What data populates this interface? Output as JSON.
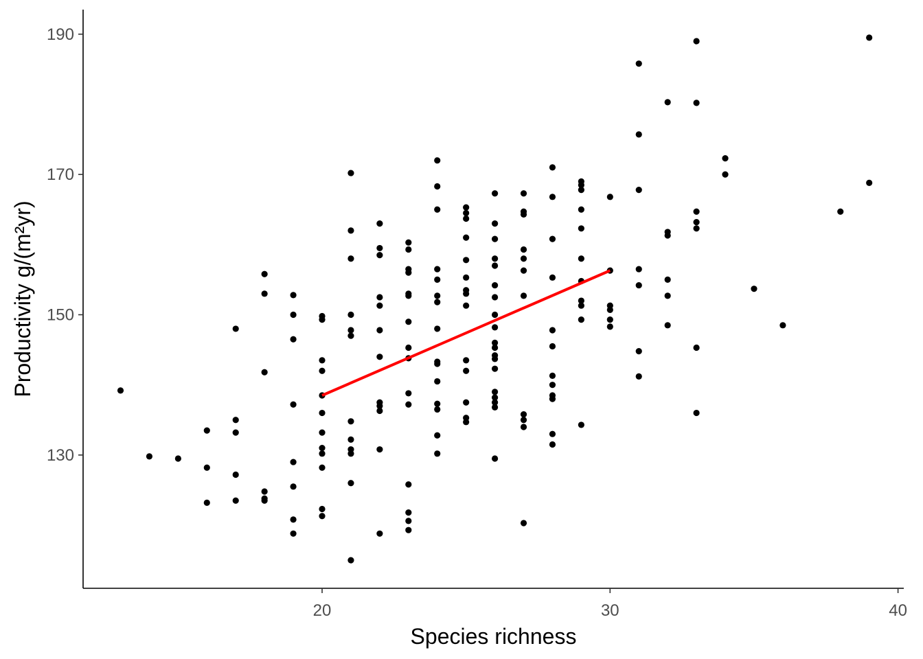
{
  "chart_data": {
    "type": "scatter",
    "xlabel": "Species richness",
    "ylabel": "Productivity g/(m²yr)",
    "xlim": [
      11.7,
      40.2
    ],
    "ylim": [
      111.0,
      193.5
    ],
    "x_ticks": [
      20,
      30,
      40
    ],
    "y_ticks": [
      130,
      150,
      170,
      190
    ],
    "grid": false,
    "colors": {
      "points": "#000000",
      "fit_line": "#ff0000",
      "axis": "#000000",
      "tick_text": "#4d4d4d"
    },
    "fit_line": {
      "x": [
        20,
        30
      ],
      "y": [
        138.5,
        156.3
      ]
    },
    "points": [
      {
        "x": 13,
        "y": 139.2
      },
      {
        "x": 14,
        "y": 129.8
      },
      {
        "x": 15,
        "y": 129.5
      },
      {
        "x": 16,
        "y": 133.5
      },
      {
        "x": 16,
        "y": 128.2
      },
      {
        "x": 16,
        "y": 123.2
      },
      {
        "x": 17,
        "y": 148.0
      },
      {
        "x": 17,
        "y": 135.0
      },
      {
        "x": 17,
        "y": 133.2
      },
      {
        "x": 17,
        "y": 127.2
      },
      {
        "x": 17,
        "y": 123.5
      },
      {
        "x": 18,
        "y": 155.8
      },
      {
        "x": 18,
        "y": 153.0
      },
      {
        "x": 18,
        "y": 141.8
      },
      {
        "x": 18,
        "y": 124.8
      },
      {
        "x": 18,
        "y": 123.8
      },
      {
        "x": 18,
        "y": 123.5
      },
      {
        "x": 19,
        "y": 152.8
      },
      {
        "x": 19,
        "y": 150.0
      },
      {
        "x": 19,
        "y": 146.5
      },
      {
        "x": 19,
        "y": 137.2
      },
      {
        "x": 19,
        "y": 129.0
      },
      {
        "x": 19,
        "y": 125.5
      },
      {
        "x": 19,
        "y": 120.8
      },
      {
        "x": 19,
        "y": 118.8
      },
      {
        "x": 20,
        "y": 149.8
      },
      {
        "x": 20,
        "y": 149.3
      },
      {
        "x": 20,
        "y": 143.5
      },
      {
        "x": 20,
        "y": 142.0
      },
      {
        "x": 20,
        "y": 138.5
      },
      {
        "x": 20,
        "y": 136.0
      },
      {
        "x": 20,
        "y": 133.2
      },
      {
        "x": 20,
        "y": 131.0
      },
      {
        "x": 20,
        "y": 130.2
      },
      {
        "x": 20,
        "y": 128.2
      },
      {
        "x": 20,
        "y": 122.3
      },
      {
        "x": 20,
        "y": 121.3
      },
      {
        "x": 21,
        "y": 170.2
      },
      {
        "x": 21,
        "y": 162.0
      },
      {
        "x": 21,
        "y": 158.0
      },
      {
        "x": 21,
        "y": 150.0
      },
      {
        "x": 21,
        "y": 147.8
      },
      {
        "x": 21,
        "y": 147.0
      },
      {
        "x": 21,
        "y": 134.8
      },
      {
        "x": 21,
        "y": 132.2
      },
      {
        "x": 21,
        "y": 130.8
      },
      {
        "x": 21,
        "y": 130.2
      },
      {
        "x": 21,
        "y": 126.0
      },
      {
        "x": 21,
        "y": 115.0
      },
      {
        "x": 22,
        "y": 163.0
      },
      {
        "x": 22,
        "y": 159.5
      },
      {
        "x": 22,
        "y": 158.5
      },
      {
        "x": 22,
        "y": 152.5
      },
      {
        "x": 22,
        "y": 151.3
      },
      {
        "x": 22,
        "y": 147.8
      },
      {
        "x": 22,
        "y": 144.0
      },
      {
        "x": 22,
        "y": 137.5
      },
      {
        "x": 22,
        "y": 137.0
      },
      {
        "x": 22,
        "y": 136.3
      },
      {
        "x": 22,
        "y": 130.8
      },
      {
        "x": 22,
        "y": 118.8
      },
      {
        "x": 23,
        "y": 160.3
      },
      {
        "x": 23,
        "y": 159.3
      },
      {
        "x": 23,
        "y": 156.5
      },
      {
        "x": 23,
        "y": 156.0
      },
      {
        "x": 23,
        "y": 153.0
      },
      {
        "x": 23,
        "y": 152.7
      },
      {
        "x": 23,
        "y": 149.0
      },
      {
        "x": 23,
        "y": 145.3
      },
      {
        "x": 23,
        "y": 143.8
      },
      {
        "x": 23,
        "y": 138.8
      },
      {
        "x": 23,
        "y": 137.2
      },
      {
        "x": 23,
        "y": 125.8
      },
      {
        "x": 23,
        "y": 121.8
      },
      {
        "x": 23,
        "y": 120.6
      },
      {
        "x": 23,
        "y": 119.3
      },
      {
        "x": 24,
        "y": 172.0
      },
      {
        "x": 24,
        "y": 168.3
      },
      {
        "x": 24,
        "y": 165.0
      },
      {
        "x": 24,
        "y": 156.5
      },
      {
        "x": 24,
        "y": 155.0
      },
      {
        "x": 24,
        "y": 152.7
      },
      {
        "x": 24,
        "y": 151.8
      },
      {
        "x": 24,
        "y": 148.0
      },
      {
        "x": 24,
        "y": 143.3
      },
      {
        "x": 24,
        "y": 143.0
      },
      {
        "x": 24,
        "y": 140.5
      },
      {
        "x": 24,
        "y": 137.3
      },
      {
        "x": 24,
        "y": 136.5
      },
      {
        "x": 24,
        "y": 132.8
      },
      {
        "x": 24,
        "y": 130.2
      },
      {
        "x": 25,
        "y": 165.3
      },
      {
        "x": 25,
        "y": 164.5
      },
      {
        "x": 25,
        "y": 163.7
      },
      {
        "x": 25,
        "y": 161.0
      },
      {
        "x": 25,
        "y": 157.8
      },
      {
        "x": 25,
        "y": 155.3
      },
      {
        "x": 25,
        "y": 153.5
      },
      {
        "x": 25,
        "y": 153.0
      },
      {
        "x": 25,
        "y": 151.3
      },
      {
        "x": 25,
        "y": 143.5
      },
      {
        "x": 25,
        "y": 142.0
      },
      {
        "x": 25,
        "y": 137.5
      },
      {
        "x": 25,
        "y": 135.3
      },
      {
        "x": 25,
        "y": 134.7
      },
      {
        "x": 26,
        "y": 167.3
      },
      {
        "x": 26,
        "y": 163.0
      },
      {
        "x": 26,
        "y": 160.8
      },
      {
        "x": 26,
        "y": 158.0
      },
      {
        "x": 26,
        "y": 157.0
      },
      {
        "x": 26,
        "y": 154.2
      },
      {
        "x": 26,
        "y": 152.5
      },
      {
        "x": 26,
        "y": 150.0
      },
      {
        "x": 26,
        "y": 148.2
      },
      {
        "x": 26,
        "y": 146.0
      },
      {
        "x": 26,
        "y": 145.3
      },
      {
        "x": 26,
        "y": 144.2
      },
      {
        "x": 26,
        "y": 143.7
      },
      {
        "x": 26,
        "y": 142.3
      },
      {
        "x": 26,
        "y": 139.0
      },
      {
        "x": 26,
        "y": 138.2
      },
      {
        "x": 26,
        "y": 137.5
      },
      {
        "x": 26,
        "y": 136.8
      },
      {
        "x": 26,
        "y": 129.5
      },
      {
        "x": 27,
        "y": 167.3
      },
      {
        "x": 27,
        "y": 164.7
      },
      {
        "x": 27,
        "y": 164.3
      },
      {
        "x": 27,
        "y": 159.3
      },
      {
        "x": 27,
        "y": 158.0
      },
      {
        "x": 27,
        "y": 156.3
      },
      {
        "x": 27,
        "y": 152.7
      },
      {
        "x": 27,
        "y": 135.8
      },
      {
        "x": 27,
        "y": 135.0
      },
      {
        "x": 27,
        "y": 134.0
      },
      {
        "x": 27,
        "y": 120.3
      },
      {
        "x": 28,
        "y": 171.0
      },
      {
        "x": 28,
        "y": 166.8
      },
      {
        "x": 28,
        "y": 160.8
      },
      {
        "x": 28,
        "y": 155.3
      },
      {
        "x": 28,
        "y": 147.8
      },
      {
        "x": 28,
        "y": 145.5
      },
      {
        "x": 28,
        "y": 141.3
      },
      {
        "x": 28,
        "y": 140.0
      },
      {
        "x": 28,
        "y": 138.5
      },
      {
        "x": 28,
        "y": 138.0
      },
      {
        "x": 28,
        "y": 133.0
      },
      {
        "x": 28,
        "y": 131.5
      },
      {
        "x": 29,
        "y": 169.0
      },
      {
        "x": 29,
        "y": 168.5
      },
      {
        "x": 29,
        "y": 167.8
      },
      {
        "x": 29,
        "y": 165.0
      },
      {
        "x": 29,
        "y": 162.3
      },
      {
        "x": 29,
        "y": 158.0
      },
      {
        "x": 29,
        "y": 154.8
      },
      {
        "x": 29,
        "y": 152.0
      },
      {
        "x": 29,
        "y": 151.3
      },
      {
        "x": 29,
        "y": 149.3
      },
      {
        "x": 29,
        "y": 134.3
      },
      {
        "x": 30,
        "y": 166.8
      },
      {
        "x": 30,
        "y": 156.3
      },
      {
        "x": 30,
        "y": 151.3
      },
      {
        "x": 30,
        "y": 150.7
      },
      {
        "x": 30,
        "y": 149.3
      },
      {
        "x": 30,
        "y": 148.3
      },
      {
        "x": 31,
        "y": 185.8
      },
      {
        "x": 31,
        "y": 175.7
      },
      {
        "x": 31,
        "y": 167.8
      },
      {
        "x": 31,
        "y": 156.5
      },
      {
        "x": 31,
        "y": 154.2
      },
      {
        "x": 31,
        "y": 144.8
      },
      {
        "x": 31,
        "y": 141.2
      },
      {
        "x": 32,
        "y": 180.3
      },
      {
        "x": 32,
        "y": 161.8
      },
      {
        "x": 32,
        "y": 161.3
      },
      {
        "x": 32,
        "y": 155.0
      },
      {
        "x": 32,
        "y": 152.7
      },
      {
        "x": 32,
        "y": 148.5
      },
      {
        "x": 33,
        "y": 189.0
      },
      {
        "x": 33,
        "y": 180.2
      },
      {
        "x": 33,
        "y": 164.7
      },
      {
        "x": 33,
        "y": 163.2
      },
      {
        "x": 33,
        "y": 162.3
      },
      {
        "x": 33,
        "y": 145.3
      },
      {
        "x": 33,
        "y": 136.0
      },
      {
        "x": 34,
        "y": 172.3
      },
      {
        "x": 34,
        "y": 170.0
      },
      {
        "x": 35,
        "y": 153.7
      },
      {
        "x": 36,
        "y": 148.5
      },
      {
        "x": 38,
        "y": 164.7
      },
      {
        "x": 39,
        "y": 189.5
      },
      {
        "x": 39,
        "y": 168.8
      }
    ]
  }
}
